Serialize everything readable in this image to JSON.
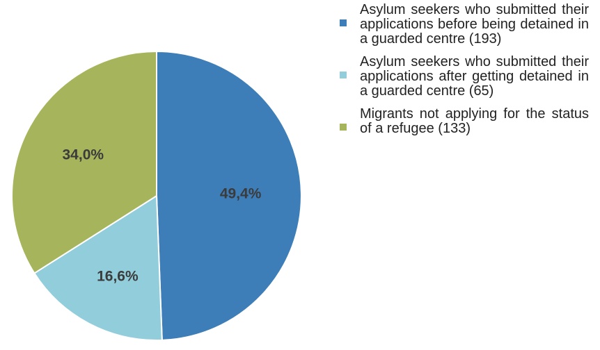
{
  "chart_data": {
    "type": "pie",
    "title": "",
    "slices": [
      {
        "value": 49.4,
        "label": "49,4%",
        "legend": "Asylum seekers who submitted their applications before being detained in a guarded centre (193)",
        "color": "#3d7eb9"
      },
      {
        "value": 16.6,
        "label": "16,6%",
        "legend": "Asylum seekers who submitted their applications after getting detained in a guarded centre (65)",
        "color": "#92cddc"
      },
      {
        "value": 34.0,
        "label": "34,0%",
        "legend": "Migrants not applying for the status of a refugee (133)",
        "color": "#a6b55b"
      }
    ],
    "start_angle": "top",
    "direction": "clockwise",
    "legend_position": "right"
  }
}
